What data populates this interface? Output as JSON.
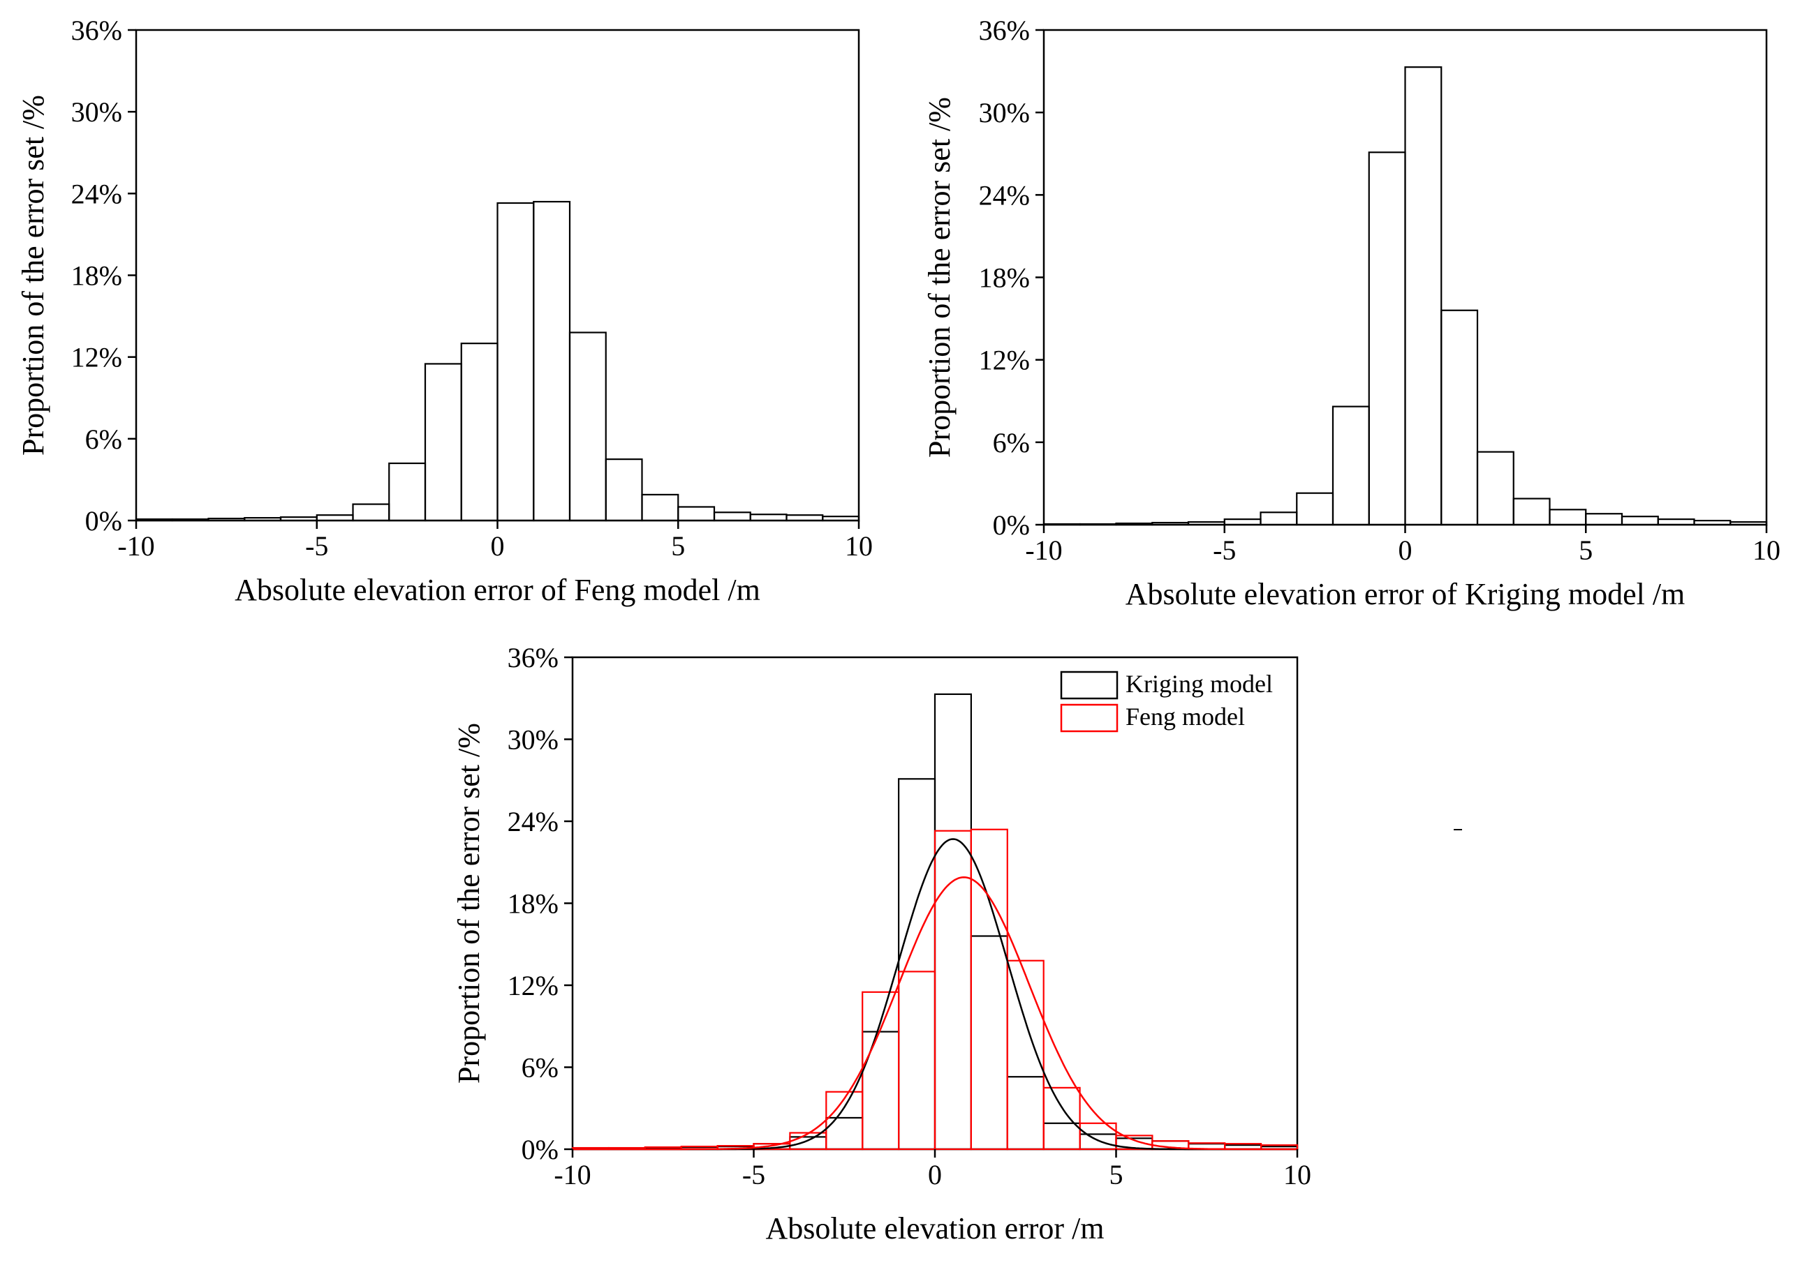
{
  "chart_data": [
    {
      "id": "feng",
      "type": "bar",
      "title": "",
      "xlabel": "Absolute elevation error of Feng model /m",
      "ylabel": "Proportion of the error set /%",
      "xlim": [
        -10,
        10
      ],
      "ylim": [
        0,
        36
      ],
      "xticks": [
        -10,
        -5,
        0,
        5,
        10
      ],
      "yticks": [
        0,
        6,
        12,
        18,
        24,
        30,
        36
      ],
      "ytick_labels": [
        "0%",
        "6%",
        "12%",
        "18%",
        "24%",
        "30%",
        "36%"
      ],
      "bin_width": 1,
      "series": [
        {
          "name": "Feng model",
          "color": "#000000",
          "bin_edges": [
            -10,
            -9,
            -8,
            -7,
            -6,
            -5,
            -4,
            -3,
            -2,
            -1,
            0,
            1,
            2,
            3,
            4,
            5,
            6,
            7,
            8,
            9,
            10
          ],
          "values": [
            0.1,
            0.1,
            0.15,
            0.2,
            0.25,
            0.4,
            1.2,
            4.2,
            11.5,
            13.0,
            23.3,
            23.4,
            13.8,
            4.5,
            1.9,
            1.0,
            0.6,
            0.45,
            0.4,
            0.3
          ]
        }
      ]
    },
    {
      "id": "kriging",
      "type": "bar",
      "title": "",
      "xlabel": "Absolute elevation error of Kriging model /m",
      "ylabel": "Proportion of the error set /%",
      "xlim": [
        -10,
        10
      ],
      "ylim": [
        0,
        36
      ],
      "xticks": [
        -10,
        -5,
        0,
        5,
        10
      ],
      "yticks": [
        0,
        6,
        12,
        18,
        24,
        30,
        36
      ],
      "ytick_labels": [
        "0%",
        "6%",
        "12%",
        "18%",
        "24%",
        "30%",
        "36%"
      ],
      "bin_width": 1,
      "series": [
        {
          "name": "Kriging model",
          "color": "#000000",
          "bin_edges": [
            -10,
            -9,
            -8,
            -7,
            -6,
            -5,
            -4,
            -3,
            -2,
            -1,
            0,
            1,
            2,
            3,
            4,
            5,
            6,
            7,
            8,
            9,
            10
          ],
          "values": [
            0.05,
            0.05,
            0.1,
            0.15,
            0.2,
            0.4,
            0.9,
            2.3,
            8.6,
            27.1,
            33.3,
            15.6,
            5.3,
            1.9,
            1.1,
            0.8,
            0.6,
            0.4,
            0.3,
            0.2
          ]
        }
      ]
    },
    {
      "id": "combined",
      "type": "bar",
      "title": "",
      "xlabel": "Absolute elevation error /m",
      "ylabel": "Proportion of the error set /%",
      "xlim": [
        -10,
        10
      ],
      "ylim": [
        0,
        36
      ],
      "xticks": [
        -10,
        -5,
        0,
        5,
        10
      ],
      "yticks": [
        0,
        6,
        12,
        18,
        24,
        30,
        36
      ],
      "ytick_labels": [
        "0%",
        "6%",
        "12%",
        "18%",
        "24%",
        "30%",
        "36%"
      ],
      "legend": {
        "position": "top-right"
      },
      "bin_width": 1,
      "series": [
        {
          "name": "Kriging model",
          "color": "#000000",
          "bin_edges": [
            -10,
            -9,
            -8,
            -7,
            -6,
            -5,
            -4,
            -3,
            -2,
            -1,
            0,
            1,
            2,
            3,
            4,
            5,
            6,
            7,
            8,
            9,
            10
          ],
          "values": [
            0.05,
            0.05,
            0.1,
            0.15,
            0.2,
            0.4,
            0.9,
            2.3,
            8.6,
            27.1,
            33.3,
            15.6,
            5.3,
            1.9,
            1.1,
            0.8,
            0.6,
            0.4,
            0.3,
            0.2
          ],
          "fit": {
            "type": "normal",
            "mean": 0.5,
            "sd": 1.5,
            "peak": 22.7
          }
        },
        {
          "name": "Feng model",
          "color": "#ff0000",
          "bin_edges": [
            -10,
            -9,
            -8,
            -7,
            -6,
            -5,
            -4,
            -3,
            -2,
            -1,
            0,
            1,
            2,
            3,
            4,
            5,
            6,
            7,
            8,
            9,
            10
          ],
          "values": [
            0.1,
            0.1,
            0.15,
            0.2,
            0.25,
            0.4,
            1.2,
            4.2,
            11.5,
            13.0,
            23.3,
            23.4,
            13.8,
            4.5,
            1.9,
            1.0,
            0.6,
            0.45,
            0.4,
            0.3
          ],
          "fit": {
            "type": "normal",
            "mean": 0.8,
            "sd": 1.8,
            "peak": 19.9
          }
        }
      ]
    }
  ]
}
